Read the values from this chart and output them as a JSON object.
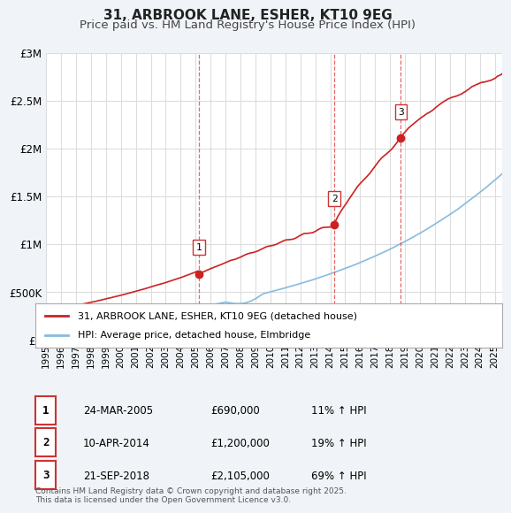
{
  "title": "31, ARBROOK LANE, ESHER, KT10 9EG",
  "subtitle": "Price paid vs. HM Land Registry's House Price Index (HPI)",
  "xlabel": "",
  "ylabel": "",
  "ylim": [
    0,
    3000000
  ],
  "yticks": [
    0,
    500000,
    1000000,
    1500000,
    2000000,
    2500000,
    3000000
  ],
  "ytick_labels": [
    "£0",
    "£500K",
    "£1M",
    "£1.5M",
    "£2M",
    "£2.5M",
    "£3M"
  ],
  "xlim_start": 1995.0,
  "xlim_end": 2025.5,
  "sale_dates": [
    2005.23,
    2014.27,
    2018.72
  ],
  "sale_prices": [
    690000,
    1200000,
    2105000
  ],
  "sale_labels": [
    "1",
    "2",
    "3"
  ],
  "vline_color": "#dd4444",
  "vline_style": "dashed",
  "sale_marker_color": "#cc2222",
  "hpi_line_color": "#88bbdd",
  "price_line_color": "#cc2222",
  "background_color": "#f0f4f8",
  "plot_bg_color": "#ffffff",
  "grid_color": "#dddddd",
  "legend_entries": [
    "31, ARBROOK LANE, ESHER, KT10 9EG (detached house)",
    "HPI: Average price, detached house, Elmbridge"
  ],
  "table_entries": [
    {
      "label": "1",
      "date": "24-MAR-2005",
      "price": "£690,000",
      "hpi": "11% ↑ HPI"
    },
    {
      "label": "2",
      "date": "10-APR-2014",
      "price": "£1,200,000",
      "hpi": "19% ↑ HPI"
    },
    {
      "label": "3",
      "date": "21-SEP-2018",
      "price": "£2,105,000",
      "hpi": "69% ↑ HPI"
    }
  ],
  "footnote": "Contains HM Land Registry data © Crown copyright and database right 2025.\nThis data is licensed under the Open Government Licence v3.0.",
  "title_fontsize": 11,
  "subtitle_fontsize": 9.5,
  "tick_fontsize": 8.5
}
